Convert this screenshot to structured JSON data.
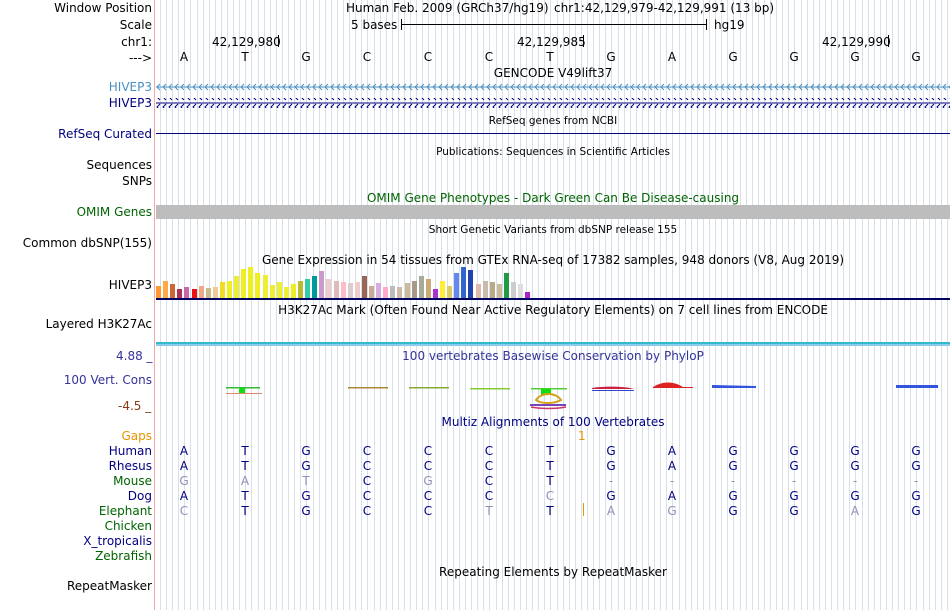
{
  "header": {
    "window_position_label": "Window Position",
    "scale_label": "Scale",
    "chrom_label": "chr1:",
    "arrow_label": "--->",
    "assembly": "Human Feb. 2009 (GRCh37/hg19)",
    "position": "chr1:42,129,979-42,129,991 (13 bp)",
    "scale_text": "5 bases",
    "scale_db": "hg19",
    "coords": [
      "42,129,980",
      "42,129,985",
      "42,129,990"
    ]
  },
  "bases": [
    "A",
    "T",
    "G",
    "C",
    "C",
    "C",
    "T",
    "G",
    "A",
    "G",
    "G",
    "G",
    "G"
  ],
  "tracks": {
    "gencode": {
      "title": "GENCODE V49lift37",
      "genes": [
        "HIVEP3",
        "HIVEP3"
      ]
    },
    "refseq": {
      "title": "RefSeq genes from NCBI",
      "label": "RefSeq Curated"
    },
    "publications": {
      "title": "Publications: Sequences in Scientific Articles",
      "labels": [
        "Sequences",
        "SNPs"
      ]
    },
    "omim": {
      "title": "OMIM Gene Phenotypes - Dark Green Can Be Disease-causing",
      "label": "OMIM Genes"
    },
    "dbsnp": {
      "title": "Short Genetic Variants from dbSNP release 155",
      "label": "Common dbSNP(155)"
    },
    "gtex": {
      "title": "Gene Expression in 54 tissues from GTEx RNA-seq of 17382 samples, 948 donors (V8, Aug 2019)",
      "label": "HIVEP3",
      "bars": [
        {
          "v": 0.38,
          "c": "#ff9933"
        },
        {
          "v": 0.55,
          "c": "#ffaa44"
        },
        {
          "v": 0.45,
          "c": "#cc6633"
        },
        {
          "v": 0.3,
          "c": "#aa3355"
        },
        {
          "v": 0.34,
          "c": "#cc66aa"
        },
        {
          "v": 0.28,
          "c": "#ee1111"
        },
        {
          "v": 0.38,
          "c": "#eeaa88"
        },
        {
          "v": 0.32,
          "c": "#ccbb88"
        },
        {
          "v": 0.36,
          "c": "#eecc99"
        },
        {
          "v": 0.5,
          "c": "#eedd22"
        },
        {
          "v": 0.55,
          "c": "#eeee22"
        },
        {
          "v": 0.7,
          "c": "#eeee33"
        },
        {
          "v": 0.95,
          "c": "#eeee22"
        },
        {
          "v": 1.0,
          "c": "#eeee22"
        },
        {
          "v": 0.8,
          "c": "#eeee22"
        },
        {
          "v": 0.75,
          "c": "#eeee33"
        },
        {
          "v": 0.42,
          "c": "#eeee33"
        },
        {
          "v": 0.5,
          "c": "#eeee33"
        },
        {
          "v": 0.36,
          "c": "#eeee33"
        },
        {
          "v": 0.45,
          "c": "#eeee22"
        },
        {
          "v": 0.55,
          "c": "#bbbb33"
        },
        {
          "v": 0.6,
          "c": "#33ccaa"
        },
        {
          "v": 0.7,
          "c": "#009999"
        },
        {
          "v": 0.88,
          "c": "#cc99cc"
        },
        {
          "v": 0.62,
          "c": "#eecccc"
        },
        {
          "v": 0.55,
          "c": "#ddbbbb"
        },
        {
          "v": 0.5,
          "c": "#ffbbcc"
        },
        {
          "v": 0.48,
          "c": "#ddcccc"
        },
        {
          "v": 0.52,
          "c": "#eecccc"
        },
        {
          "v": 0.7,
          "c": "#996655"
        },
        {
          "v": 0.38,
          "c": "#ccaa99"
        },
        {
          "v": 0.48,
          "c": "#ddaadd"
        },
        {
          "v": 0.35,
          "c": "#ffaacc"
        },
        {
          "v": 0.4,
          "c": "#bbbbbb"
        },
        {
          "v": 0.37,
          "c": "#ccbbaa"
        },
        {
          "v": 0.48,
          "c": "#ccbb99"
        },
        {
          "v": 0.55,
          "c": "#aa9988"
        },
        {
          "v": 0.7,
          "c": "#aaaa99"
        },
        {
          "v": 0.6,
          "c": "#ccaa77"
        },
        {
          "v": 0.3,
          "c": "#aa33cc"
        },
        {
          "v": 0.55,
          "c": "#ffee33"
        },
        {
          "v": 0.4,
          "c": "#ddcc66"
        },
        {
          "v": 0.8,
          "c": "#6688ee"
        },
        {
          "v": 1.0,
          "c": "#3366cc"
        },
        {
          "v": 0.9,
          "c": "#2244aa"
        },
        {
          "v": 0.45,
          "c": "#ddbbaa"
        },
        {
          "v": 0.55,
          "c": "#ccbbaa"
        },
        {
          "v": 0.5,
          "c": "#bbaa88"
        },
        {
          "v": 0.45,
          "c": "#ccbb99"
        },
        {
          "v": 0.8,
          "c": "#229944"
        },
        {
          "v": 0.5,
          "c": "#cccccc"
        },
        {
          "v": 0.45,
          "c": "#dddddd"
        },
        {
          "v": 0.2,
          "c": "#aa22cc"
        }
      ]
    },
    "h3k27ac": {
      "title": "H3K27Ac Mark (Often Found Near Active Regulatory Elements) on 7 cell lines from ENCODE",
      "label": "Layered H3K27Ac"
    },
    "cons": {
      "title": "100 vertebrates Basewise Conservation by PhyloP",
      "label": "100 Vert. Cons",
      "max": "4.88 _",
      "min": "-4.5 _"
    },
    "multiz": {
      "title": "Multiz Alignments of 100 Vertebrates",
      "gaps_label": "Gaps",
      "gap_mark": "1",
      "species": [
        {
          "name": "Human",
          "color": "#000080",
          "seq": [
            "A",
            "T",
            "G",
            "C",
            "C",
            "C",
            "T",
            "G",
            "A",
            "G",
            "G",
            "G",
            "G"
          ],
          "faded": []
        },
        {
          "name": "Rhesus",
          "color": "#000080",
          "seq": [
            "A",
            "T",
            "G",
            "C",
            "C",
            "C",
            "T",
            "G",
            "A",
            "G",
            "G",
            "G",
            "G"
          ],
          "faded": []
        },
        {
          "name": "Mouse",
          "color": "#006400",
          "seq": [
            "G",
            "A",
            "T",
            "C",
            "G",
            "C",
            "T",
            "-",
            "-",
            "-",
            "-",
            "-",
            "-"
          ],
          "faded": [
            0,
            1,
            2,
            4,
            7,
            8,
            9,
            10,
            11,
            12
          ]
        },
        {
          "name": "Dog",
          "color": "#000080",
          "seq": [
            "A",
            "T",
            "G",
            "C",
            "C",
            "C",
            "C",
            "G",
            "A",
            "G",
            "G",
            "G",
            "G"
          ],
          "faded": [
            6
          ]
        },
        {
          "name": "Elephant",
          "color": "#006400",
          "seq": [
            "C",
            "T",
            "G",
            "C",
            "C",
            "T",
            "T",
            "A",
            "G",
            "G",
            "G",
            "A",
            "G"
          ],
          "faded": [
            0,
            5,
            7,
            8,
            11
          ]
        },
        {
          "name": "Chicken",
          "color": "#006400",
          "seq": [],
          "faded": []
        },
        {
          "name": "X_tropicalis",
          "color": "#000080",
          "seq": [],
          "faded": []
        },
        {
          "name": "Zebrafish",
          "color": "#006400",
          "seq": [],
          "faded": []
        }
      ]
    },
    "repeatmasker": {
      "title": "Repeating Elements by RepeatMasker",
      "label": "RepeatMasker"
    }
  }
}
